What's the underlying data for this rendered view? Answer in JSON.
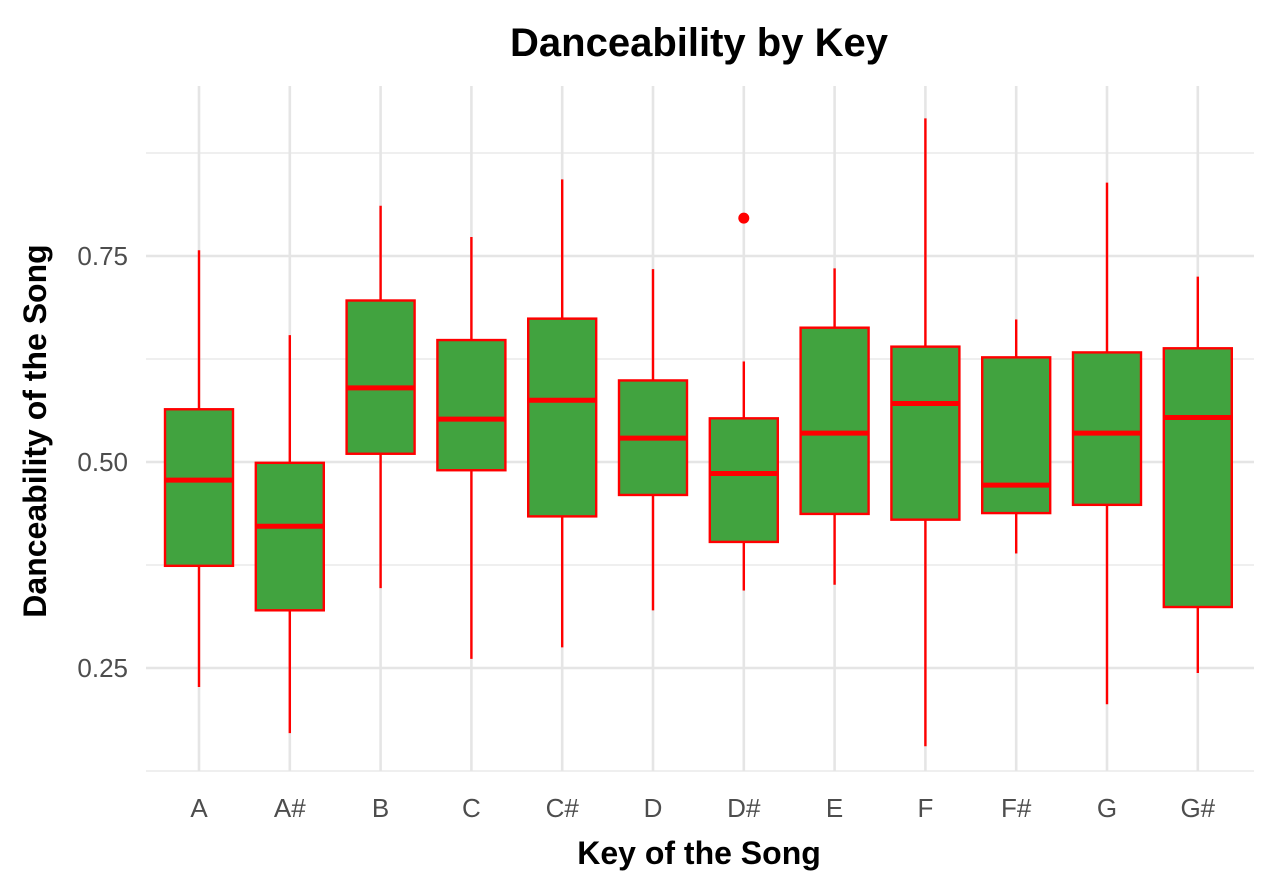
{
  "chart_data": {
    "type": "box",
    "title": "Danceability by Key",
    "xlabel": "Key of the Song",
    "ylabel": "Danceability of the Song",
    "ylim": [
      0.125,
      0.955
    ],
    "y_ticks": [
      0.25,
      0.5,
      0.75
    ],
    "y_tick_labels": [
      "0.25",
      "0.50",
      "0.75"
    ],
    "grid": true,
    "legend": "none",
    "colors": {
      "fill": "#41A33F",
      "outline": "#FF0000",
      "grid": "#E5E5E5"
    },
    "categories": [
      "A",
      "A#",
      "B",
      "C",
      "C#",
      "D",
      "D#",
      "E",
      "F",
      "F#",
      "G",
      "G#"
    ],
    "boxes": [
      {
        "key": "A",
        "min": 0.227,
        "q1": 0.374,
        "median": 0.478,
        "q3": 0.564,
        "max": 0.757,
        "outliers": []
      },
      {
        "key": "A#",
        "min": 0.171,
        "q1": 0.32,
        "median": 0.422,
        "q3": 0.499,
        "max": 0.654,
        "outliers": []
      },
      {
        "key": "B",
        "min": 0.347,
        "q1": 0.51,
        "median": 0.59,
        "q3": 0.696,
        "max": 0.811,
        "outliers": []
      },
      {
        "key": "C",
        "min": 0.261,
        "q1": 0.49,
        "median": 0.552,
        "q3": 0.648,
        "max": 0.773,
        "outliers": []
      },
      {
        "key": "C#",
        "min": 0.275,
        "q1": 0.434,
        "median": 0.575,
        "q3": 0.674,
        "max": 0.843,
        "outliers": []
      },
      {
        "key": "D",
        "min": 0.32,
        "q1": 0.46,
        "median": 0.529,
        "q3": 0.599,
        "max": 0.734,
        "outliers": []
      },
      {
        "key": "D#",
        "min": 0.344,
        "q1": 0.403,
        "median": 0.486,
        "q3": 0.553,
        "max": 0.622,
        "outliers": [
          0.796
        ]
      },
      {
        "key": "E",
        "min": 0.351,
        "q1": 0.437,
        "median": 0.535,
        "q3": 0.663,
        "max": 0.735,
        "outliers": []
      },
      {
        "key": "F",
        "min": 0.155,
        "q1": 0.43,
        "median": 0.571,
        "q3": 0.64,
        "max": 0.917,
        "outliers": []
      },
      {
        "key": "F#",
        "min": 0.389,
        "q1": 0.438,
        "median": 0.472,
        "q3": 0.627,
        "max": 0.673,
        "outliers": []
      },
      {
        "key": "G",
        "min": 0.206,
        "q1": 0.448,
        "median": 0.535,
        "q3": 0.633,
        "max": 0.839,
        "outliers": []
      },
      {
        "key": "G#",
        "min": 0.244,
        "q1": 0.324,
        "median": 0.554,
        "q3": 0.638,
        "max": 0.725,
        "outliers": []
      }
    ]
  }
}
